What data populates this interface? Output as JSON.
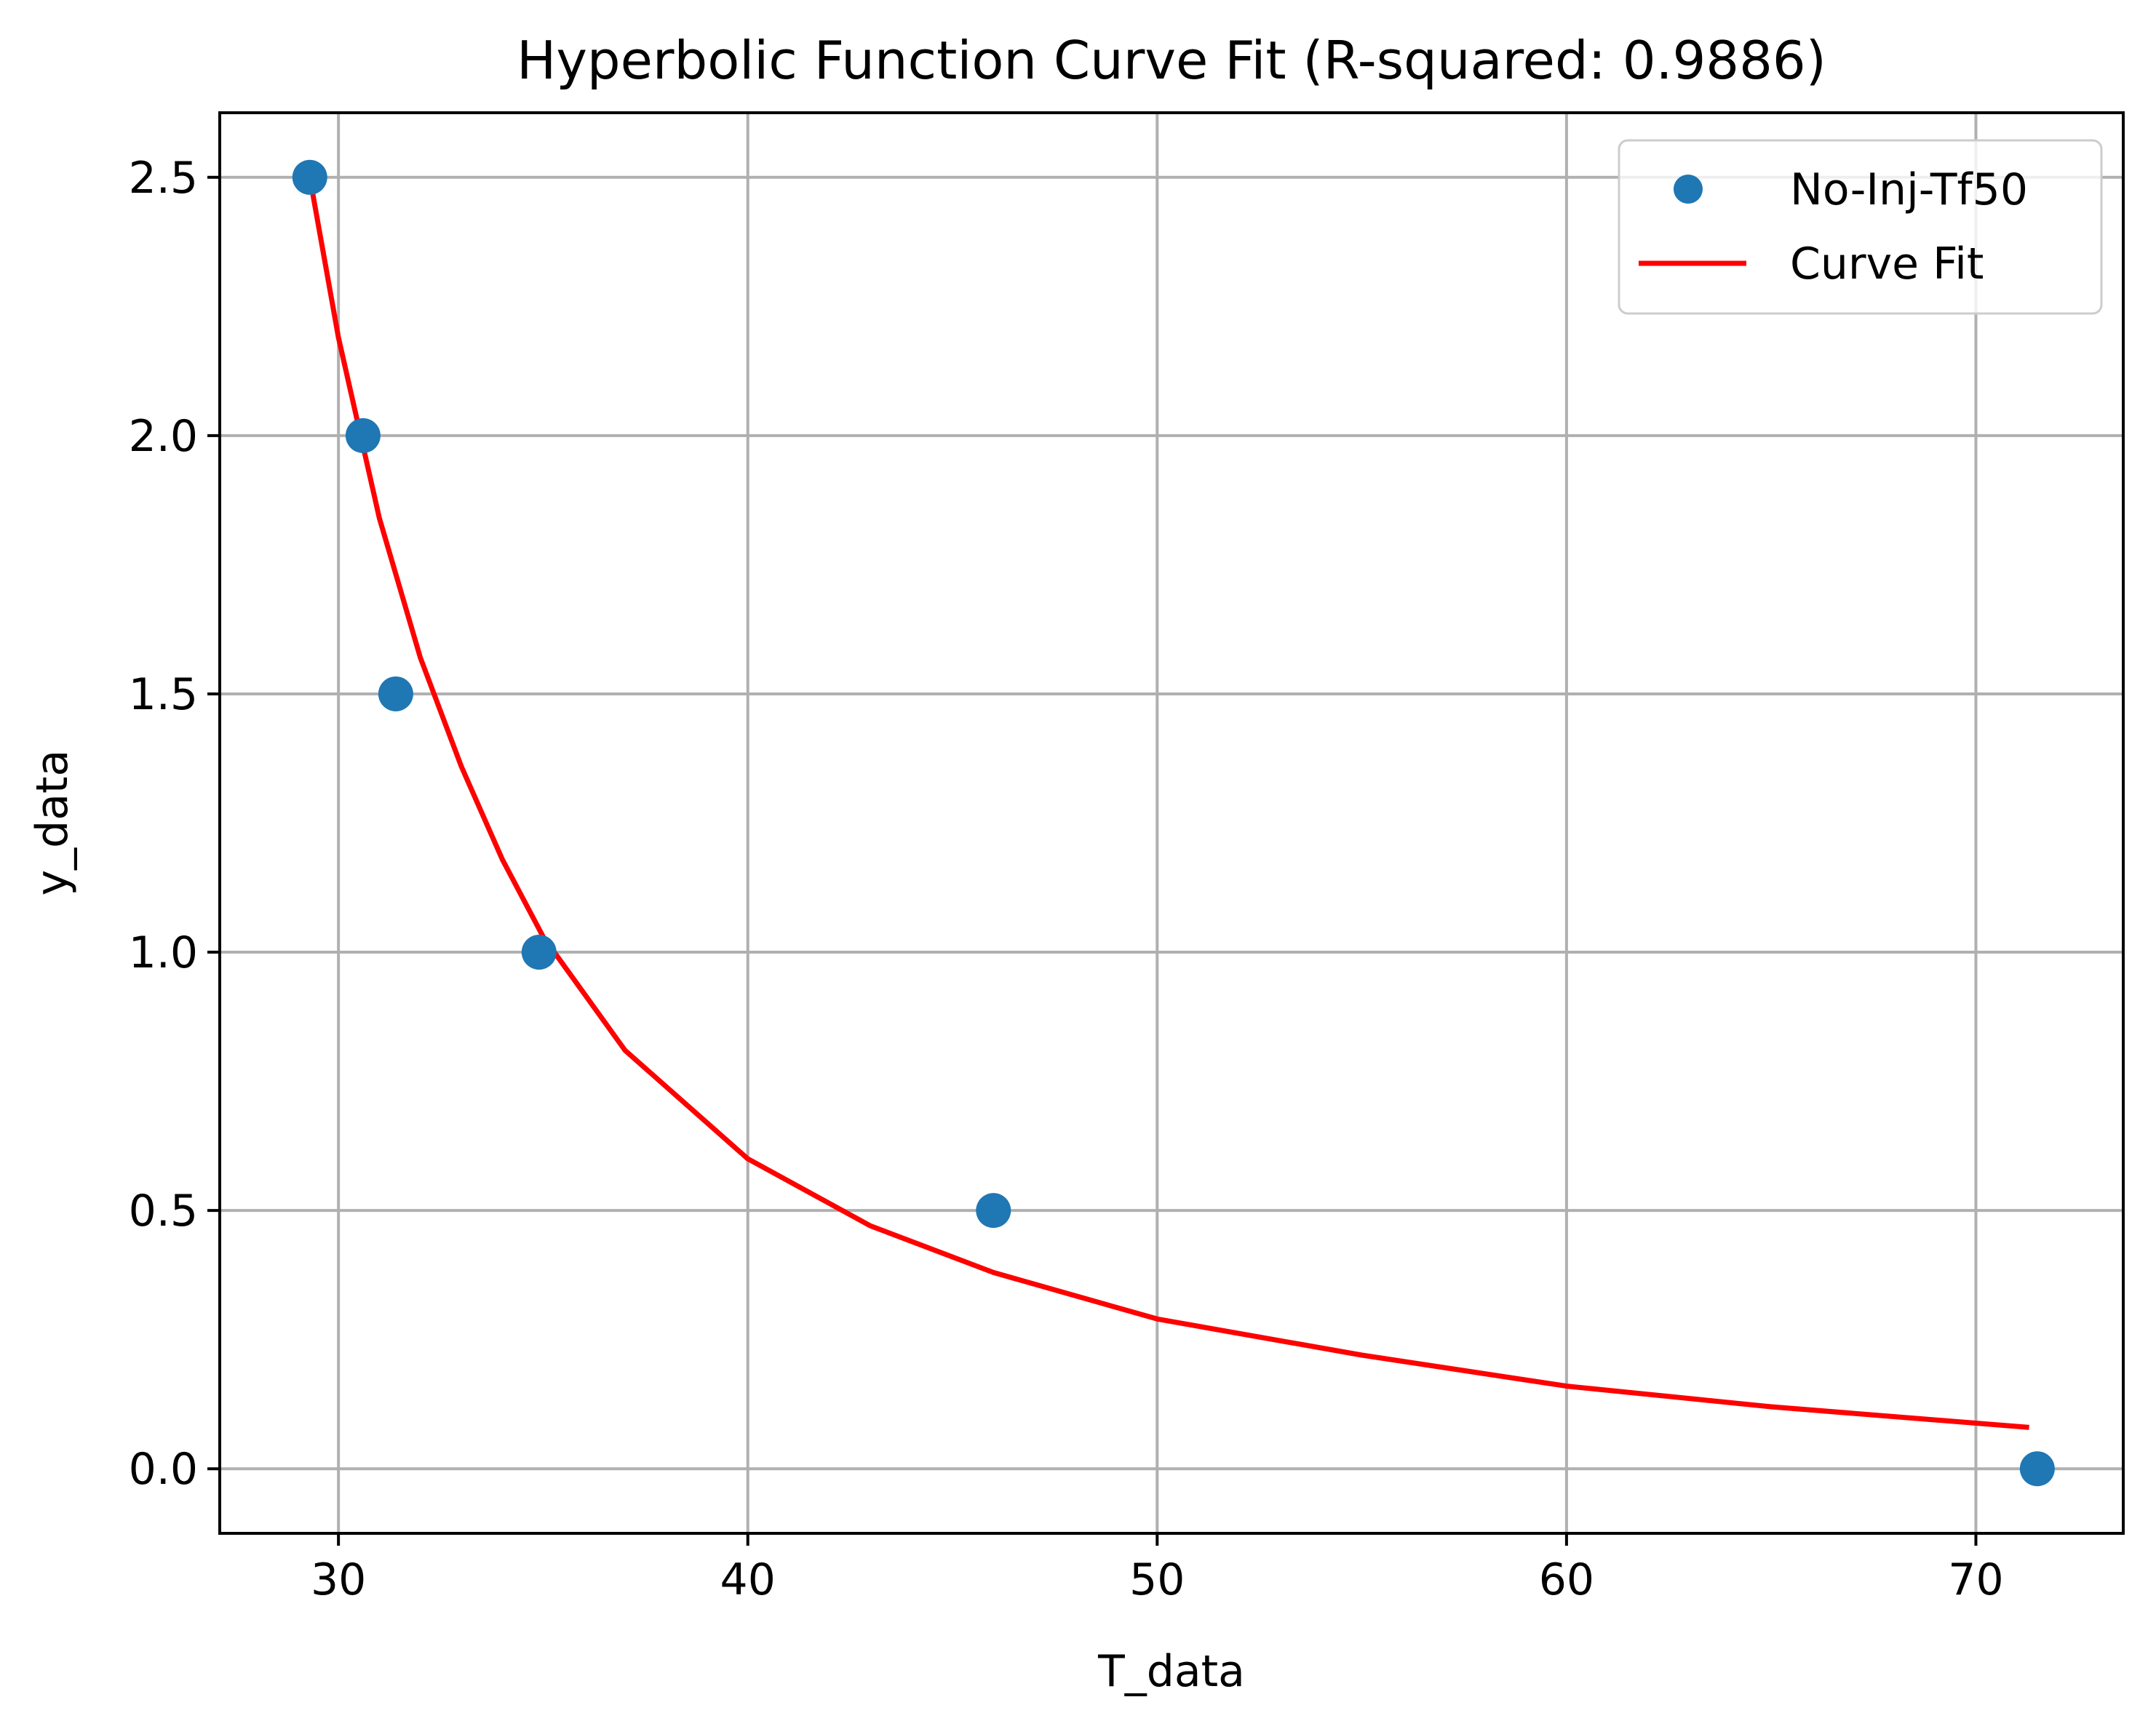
{
  "chart_data": {
    "type": "scatter",
    "title": "Hyperbolic Function Curve Fit (R-squared: 0.9886)",
    "xlabel": "T_data",
    "ylabel": "y_data",
    "xlim": [
      27.1,
      73.6
    ],
    "ylim": [
      -0.125,
      2.625
    ],
    "xticks": [
      30,
      40,
      50,
      60,
      70
    ],
    "yticks": [
      0.0,
      0.5,
      1.0,
      1.5,
      2.0,
      2.5
    ],
    "xtick_labels": [
      "30",
      "40",
      "50",
      "60",
      "70"
    ],
    "ytick_labels": [
      "0.0",
      "0.5",
      "1.0",
      "1.5",
      "2.0",
      "2.5"
    ],
    "grid": true,
    "legend_position": "top-right",
    "series": [
      {
        "name": "No-Inj-Tf50",
        "kind": "scatter",
        "color": "#1f77b4",
        "x": [
          29.3,
          30.6,
          31.4,
          34.9,
          46.0,
          71.5
        ],
        "y": [
          2.5,
          2.0,
          1.5,
          1.0,
          0.5,
          0.0
        ]
      },
      {
        "name": "Curve Fit",
        "kind": "line",
        "color": "#ff0000",
        "x": [
          29.3,
          30.0,
          31.0,
          32.0,
          33.0,
          34.0,
          35.0,
          37.0,
          40.0,
          43.0,
          46.0,
          50.0,
          55.0,
          60.0,
          65.0,
          71.3
        ],
        "y": [
          2.5,
          2.19,
          1.84,
          1.57,
          1.36,
          1.18,
          1.03,
          0.81,
          0.6,
          0.47,
          0.38,
          0.29,
          0.22,
          0.16,
          0.12,
          0.08
        ]
      }
    ]
  }
}
